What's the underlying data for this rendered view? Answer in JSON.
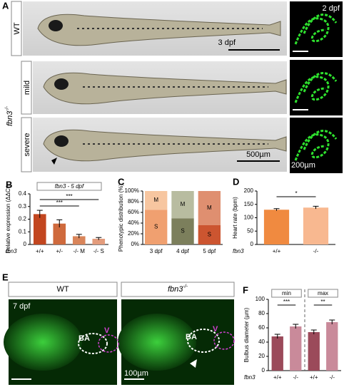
{
  "figure": {
    "panel_a": "A",
    "panel_e": "E",
    "wt": "WT",
    "genotype": {
      "gene": "fbn3",
      "sup": "-/-"
    },
    "mild": "mild",
    "severe": "severe",
    "age_a": "3 dpf",
    "age_confocal": "2 dpf",
    "scale_a": "500µm",
    "scale_confocal": "200µm",
    "age_e": "7 dpf",
    "ba": "BA",
    "v": "V",
    "scale_e": "100µm",
    "e_header_wt": "WT",
    "e_header_mut": {
      "gene": "fbn3",
      "sup": "-/-"
    }
  },
  "chart_data": [
    {
      "type": "bar",
      "panel": "B",
      "title": "fbn3 - 5 dpf",
      "ylabel": "Relative expression (ΔΔCt)",
      "row_label": "fbn3",
      "categories": [
        "+/+",
        "+/-",
        "-/- M",
        "-/- S"
      ],
      "values": [
        0.24,
        0.165,
        0.065,
        0.045
      ],
      "errors": [
        0.03,
        0.03,
        0.015,
        0.01
      ],
      "colors": [
        "#c2461f",
        "#cf6a3d",
        "#d9855a",
        "#e39c7c"
      ],
      "ylim": [
        0,
        0.4
      ],
      "yticks": [
        0,
        0.1,
        0.2,
        0.3,
        0.4
      ],
      "annotations": [
        {
          "text": "***",
          "pair": [
            0,
            3
          ]
        },
        {
          "text": "***",
          "pair": [
            0,
            2
          ]
        }
      ]
    },
    {
      "type": "stacked",
      "panel": "C",
      "ylabel": "Phenotypic distribution (%)",
      "categories": [
        "3 dpf",
        "4 dpf",
        "5 dpf"
      ],
      "series": [
        {
          "name": "S",
          "values": [
            65,
            49,
            36
          ],
          "colors": [
            "#f0a070",
            "#7c7f5c",
            "#cc5530"
          ]
        },
        {
          "name": "M",
          "values": [
            35,
            51,
            64
          ],
          "colors": [
            "#f7c6a0",
            "#b8bca0",
            "#df8f70"
          ]
        }
      ],
      "ylim": [
        0,
        100
      ],
      "yticks": [
        {
          "value": 0,
          "label": "0%"
        },
        {
          "value": 20,
          "label": "20%"
        },
        {
          "value": 40,
          "label": "40%"
        },
        {
          "value": 60,
          "label": "60%"
        },
        {
          "value": 80,
          "label": "80%"
        },
        {
          "value": 100,
          "label": "100%"
        }
      ]
    },
    {
      "type": "bar",
      "panel": "D",
      "ylabel": "Heart rate (bpm)",
      "row_label": "fbn3",
      "categories": [
        "+/+",
        "-/-"
      ],
      "values": [
        130,
        138
      ],
      "errors": [
        4,
        5
      ],
      "colors": [
        "#f08a40",
        "#f8b890"
      ],
      "ylim": [
        0,
        200
      ],
      "yticks": [
        0,
        50,
        100,
        150,
        200
      ],
      "annotations": [
        {
          "text": "*",
          "pair": [
            0,
            1
          ]
        }
      ]
    },
    {
      "type": "bar",
      "panel": "F",
      "ylabel": "Bulbus diameter (µm)",
      "row_label": "fbn3",
      "categories": [
        "+/+",
        "-/-",
        "+/+",
        "-/-"
      ],
      "values": [
        48,
        62,
        54,
        68
      ],
      "errors": [
        3,
        3,
        3,
        3
      ],
      "colors": [
        "#9b4a5a",
        "#c98a9a",
        "#9b4a5a",
        "#c98a9a"
      ],
      "ylim": [
        0,
        100
      ],
      "yticks": [
        0,
        20,
        40,
        60,
        80,
        100
      ],
      "groups": [
        {
          "label": "min",
          "pair": [
            0,
            1
          ]
        },
        {
          "label": "max",
          "pair": [
            2,
            3
          ]
        }
      ],
      "annotations": [
        {
          "text": "***",
          "pair": [
            0,
            1
          ]
        },
        {
          "text": "**",
          "pair": [
            2,
            3
          ]
        }
      ]
    }
  ]
}
